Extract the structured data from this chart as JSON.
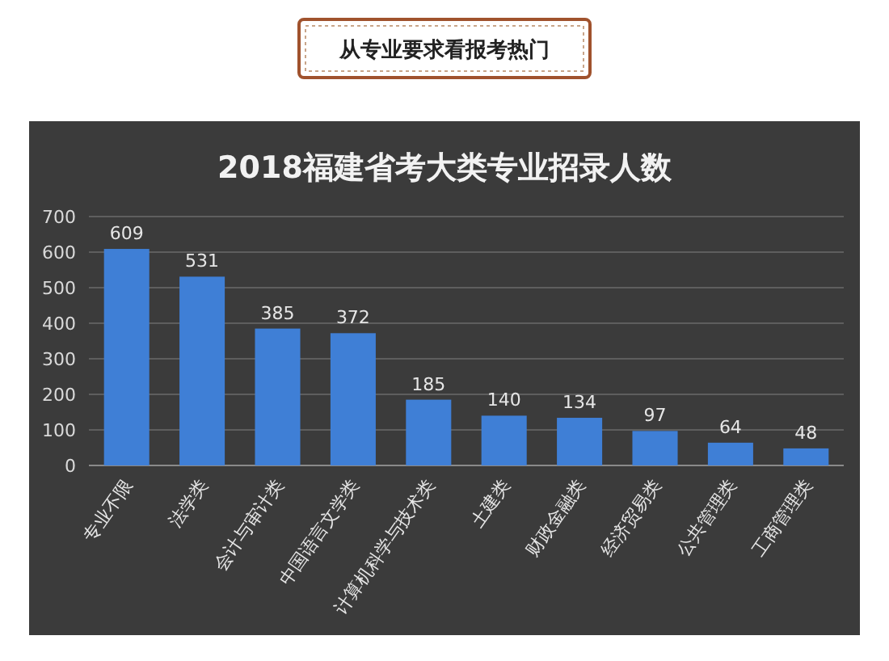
{
  "chart_data": {
    "type": "bar",
    "title": "2018福建省考大类专业招录人数",
    "annotations": [
      "从专业要求看报考热门"
    ],
    "categories": [
      "专业不限",
      "法学类",
      "会计与审计类",
      "中国语言文学类",
      "计算机科学与技术类",
      "土建类",
      "财政金融类",
      "经济贸易类",
      "公共管理类",
      "工商管理类"
    ],
    "values": [
      609,
      531,
      385,
      372,
      185,
      140,
      134,
      97,
      64,
      48
    ],
    "color": "#3f7fd6",
    "ylim": [
      0,
      700
    ],
    "yticks": [
      0,
      100,
      200,
      300,
      400,
      500,
      600,
      700
    ],
    "grid": "y",
    "data_labels": true
  }
}
